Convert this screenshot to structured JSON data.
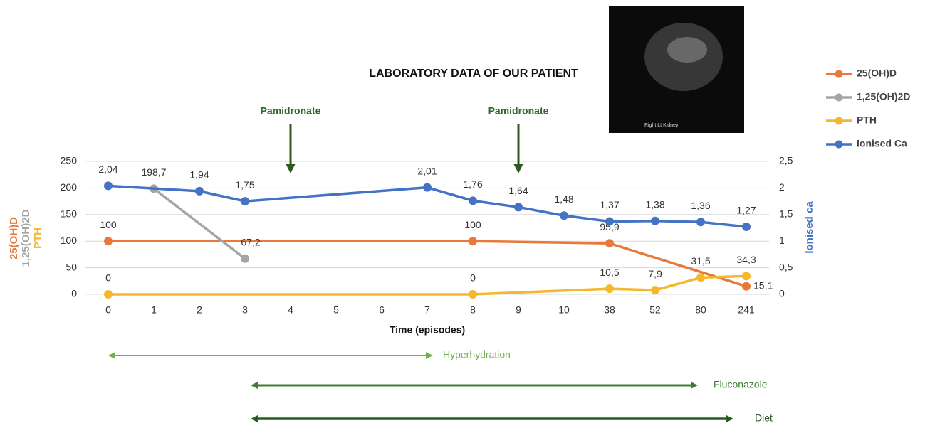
{
  "chart_data": {
    "type": "line",
    "title": "LABORATORY DATA OF OUR PATIENT",
    "x_label": "Time (episodes)",
    "y_labels": [
      {
        "text": "25(OH)D",
        "color": "#e8793a"
      },
      {
        "text": "1,25(OH)2D",
        "color": "#a5a5a5"
      },
      {
        "text": "PTH",
        "color": "#f5b82a"
      }
    ],
    "y2_label": {
      "text": "Ionised ca",
      "color": "#4472c4"
    },
    "categories": [
      0,
      1,
      2,
      3,
      4,
      5,
      6,
      7,
      8,
      9,
      10,
      38,
      52,
      80,
      241
    ],
    "ylim": [
      0,
      250
    ],
    "yticks": [
      0,
      50,
      100,
      150,
      200,
      250
    ],
    "y2lim": [
      0,
      2.5
    ],
    "y2ticks": [
      0,
      {
        "value": 0.5,
        "label": "0,5"
      },
      1,
      {
        "value": 1.5,
        "label": "1,5"
      },
      2,
      {
        "value": 2.5,
        "label": "2,5"
      }
    ],
    "grid": true,
    "legend": "right",
    "series": [
      {
        "name": "25(OH)D",
        "color": "#e8793a",
        "x": [
          0,
          8,
          38,
          241
        ],
        "values": [
          100,
          100,
          95.9,
          15.1
        ],
        "value_labels": [
          "100",
          "100",
          "95,9",
          "15,1"
        ]
      },
      {
        "name": "1,25(OH)2D",
        "color": "#a5a5a5",
        "x": [
          1,
          3
        ],
        "values": [
          198.7,
          67.2
        ],
        "value_labels": [
          "198,7",
          "67,2"
        ]
      },
      {
        "name": "PTH",
        "color": "#f5b82a",
        "x": [
          0,
          8,
          38,
          52,
          80,
          241
        ],
        "values": [
          0,
          0,
          10.5,
          7.9,
          31.5,
          34.3
        ],
        "value_labels": [
          "0",
          "0",
          "10,5",
          "7,9",
          "31,5",
          "34,3"
        ]
      },
      {
        "name": "Ionised Ca",
        "color": "#4472c4",
        "axis": "y2",
        "x": [
          0,
          2,
          3,
          7,
          8,
          9,
          10,
          38,
          52,
          80,
          241
        ],
        "values": [
          2.04,
          1.94,
          1.75,
          2.01,
          1.76,
          1.64,
          1.48,
          1.37,
          1.38,
          1.36,
          1.27
        ],
        "value_labels": [
          "2,04",
          "1,94",
          "1,75",
          "2,01",
          "1,76",
          "1,64",
          "1,48",
          "1,37",
          "1,38",
          "1,36",
          "1,27"
        ]
      }
    ],
    "annotations": [
      "Pamidronate",
      "Pamidronate"
    ],
    "periods": [
      "Hyperhydration",
      "Fluconazole",
      "Diet"
    ],
    "image_caption": "Right  Lt Kidney"
  }
}
